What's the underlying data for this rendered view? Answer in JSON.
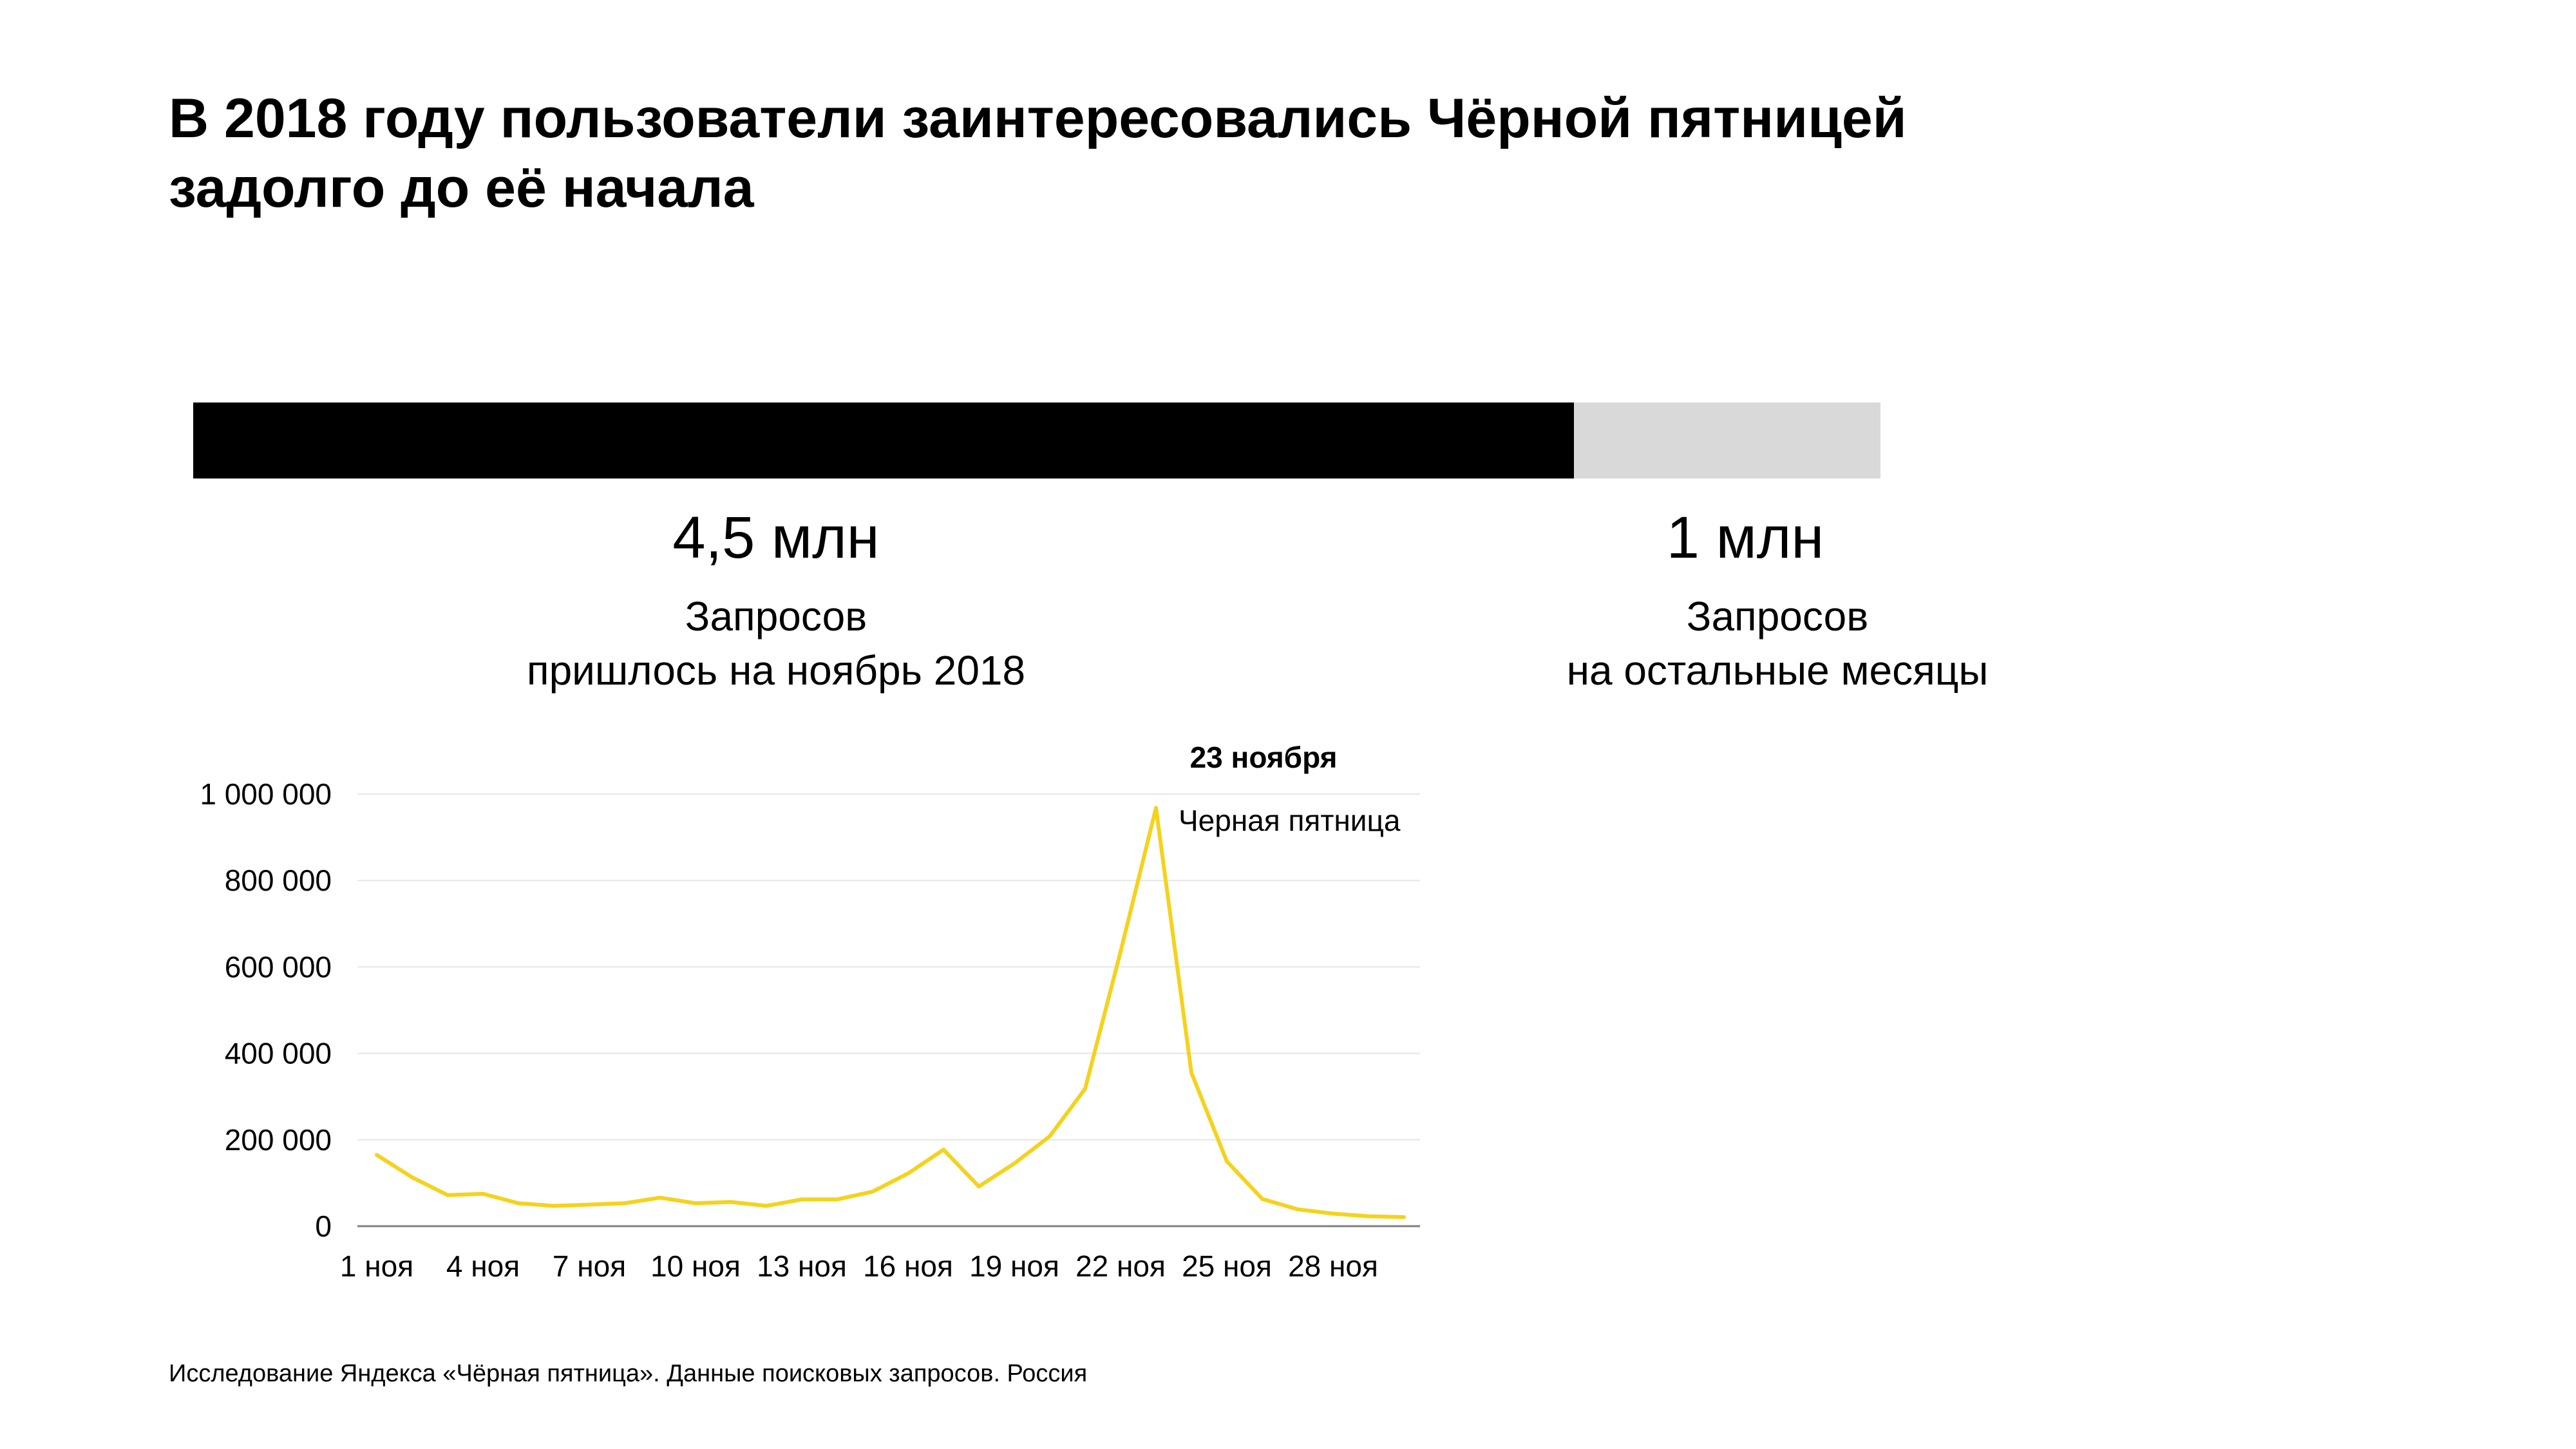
{
  "title": {
    "line1": "В 2018 году пользователи заинтересовались Чёрной пятницей",
    "line2": "задолго до её начала"
  },
  "split": {
    "segments": [
      {
        "value": 4.5,
        "big_label": "4,5 млн",
        "line1": "Запросов",
        "line2": "пришлось на ноябрь 2018",
        "color": "#000000"
      },
      {
        "value": 1,
        "big_label": "1 млн",
        "line1": "Запросов",
        "line2": "на остальные месяцы",
        "color": "#d9d9d9"
      }
    ]
  },
  "chart_data": {
    "type": "line",
    "x": [
      "1 ноя",
      "2 ноя",
      "3 ноя",
      "4 ноя",
      "5 ноя",
      "6 ноя",
      "7 ноя",
      "8 ноя",
      "9 ноя",
      "10 ноя",
      "11 ноя",
      "12 ноя",
      "13 ноя",
      "14 ноя",
      "15 ноя",
      "16 ноя",
      "17 ноя",
      "18 ноя",
      "19 ноя",
      "20 ноя",
      "21 ноя",
      "22 ноя",
      "23 ноя",
      "24 ноя",
      "25 ноя",
      "26 ноя",
      "27 ноя",
      "28 ноя",
      "29 ноя",
      "30 ноя"
    ],
    "x_tick_labels": [
      "1 ноя",
      "4 ноя",
      "7 ноя",
      "10 ноя",
      "13 ноя",
      "16 ноя",
      "19 ноя",
      "22 ноя",
      "25 ноя",
      "28 ноя"
    ],
    "series": [
      {
        "color": "#f5d21c",
        "values": [
          165000,
          113000,
          72000,
          75000,
          53000,
          47000,
          50000,
          53000,
          66000,
          53000,
          56000,
          47000,
          62000,
          62000,
          80000,
          122000,
          177000,
          92000,
          145000,
          208000,
          318000,
          635000,
          968000,
          355000,
          150000,
          63000,
          39000,
          29000,
          23000,
          21000
        ]
      }
    ],
    "ylim": [
      0,
      1000000
    ],
    "y_ticks": [
      0,
      200000,
      400000,
      600000,
      800000,
      1000000
    ],
    "y_tick_labels": [
      "0",
      "200 000",
      "400 000",
      "600 000",
      "800 000",
      "1 000 000"
    ],
    "grid": true,
    "annotation": {
      "index": 22,
      "title": "23 ноября",
      "text": "Черная пятница"
    }
  },
  "source": "Исследование Яндекса «Чёрная пятница». Данные поисковых запросов. Россия"
}
